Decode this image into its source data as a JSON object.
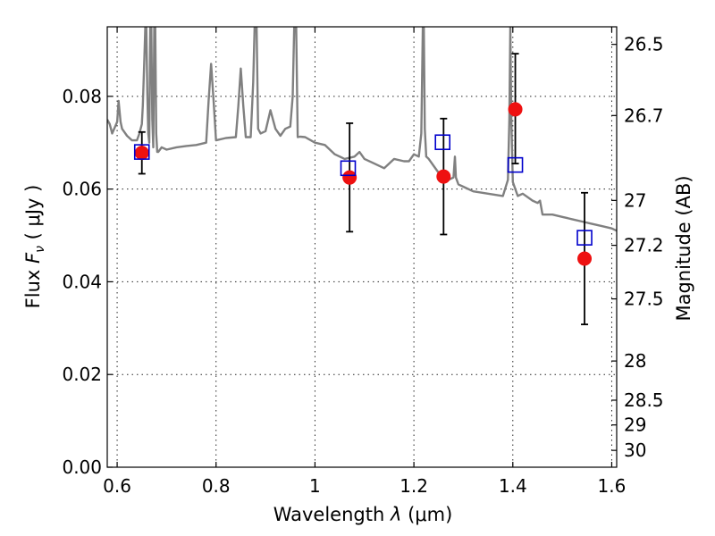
{
  "chart_data": {
    "type": "scatter",
    "xlabel_text": "Wavelength",
    "xlabel_symbol": "λ",
    "xlabel_unit": "(μm)",
    "ylabel_text": "Flux",
    "ylabel_symbol_F": "F",
    "ylabel_symbol_nu": "ν",
    "ylabel_unit": "( μJy )",
    "ylabel_right": "Magnitude (AB)",
    "xlim": [
      0.58,
      1.61
    ],
    "ylim": [
      0.0,
      0.095
    ],
    "grid": true,
    "x_ticks": [
      0.6,
      0.8,
      1.0,
      1.2,
      1.4,
      1.6
    ],
    "x_tick_labels": [
      "0.6",
      "0.8",
      "1",
      "1.2",
      "1.4",
      "1.6"
    ],
    "y_ticks": [
      0.0,
      0.02,
      0.04,
      0.06,
      0.08
    ],
    "y_tick_labels": [
      "0.00",
      "0.02",
      "0.04",
      "0.06",
      "0.08"
    ],
    "right_ticks": [
      {
        "mag": 26.5,
        "label": "26.5"
      },
      {
        "mag": 26.7,
        "label": "26.7"
      },
      {
        "mag": 27.0,
        "label": "27"
      },
      {
        "mag": 27.2,
        "label": "27.2"
      },
      {
        "mag": 27.5,
        "label": "27.5"
      },
      {
        "mag": 28.0,
        "label": "28"
      },
      {
        "mag": 28.5,
        "label": "28.5"
      },
      {
        "mag": 29.0,
        "label": "29"
      },
      {
        "mag": 30.0,
        "label": "30"
      }
    ],
    "observed": {
      "color": "#ee1111",
      "x": [
        0.65,
        1.07,
        1.26,
        1.405,
        1.545
      ],
      "y": [
        0.0678,
        0.0625,
        0.0627,
        0.0772,
        0.045
      ],
      "y_err_low": [
        0.0633,
        0.0508,
        0.0502,
        0.0655,
        0.0308
      ],
      "y_err_high": [
        0.0723,
        0.0742,
        0.0752,
        0.0892,
        0.0592
      ]
    },
    "model_photometry": {
      "color": "#0000cc",
      "x": [
        0.65,
        1.067,
        1.258,
        1.405,
        1.545
      ],
      "y": [
        0.068,
        0.0645,
        0.0701,
        0.0652,
        0.0495
      ]
    },
    "template_spectrum": {
      "color": "#808080",
      "x": [
        0.58,
        0.585,
        0.59,
        0.6,
        0.603,
        0.607,
        0.61,
        0.62,
        0.63,
        0.64,
        0.645,
        0.65,
        0.652,
        0.655,
        0.657,
        0.659,
        0.661,
        0.663,
        0.665,
        0.667,
        0.669,
        0.671,
        0.673,
        0.675,
        0.677,
        0.679,
        0.681,
        0.683,
        0.69,
        0.7,
        0.72,
        0.74,
        0.76,
        0.78,
        0.785,
        0.79,
        0.795,
        0.8,
        0.82,
        0.84,
        0.845,
        0.85,
        0.855,
        0.86,
        0.87,
        0.875,
        0.878,
        0.88,
        0.882,
        0.885,
        0.89,
        0.9,
        0.91,
        0.92,
        0.93,
        0.94,
        0.95,
        0.955,
        0.958,
        0.96,
        0.962,
        0.965,
        0.97,
        0.98,
        1.0,
        1.02,
        1.04,
        1.06,
        1.08,
        1.09,
        1.1,
        1.12,
        1.14,
        1.16,
        1.18,
        1.19,
        1.2,
        1.21,
        1.215,
        1.218,
        1.22,
        1.222,
        1.225,
        1.23,
        1.25,
        1.27,
        1.28,
        1.283,
        1.285,
        1.29,
        1.3,
        1.32,
        1.35,
        1.38,
        1.39,
        1.393,
        1.395,
        1.397,
        1.4,
        1.41,
        1.42,
        1.44,
        1.45,
        1.455,
        1.46,
        1.48,
        1.5,
        1.52,
        1.54,
        1.56,
        1.58,
        1.6,
        1.61
      ],
      "y": [
        0.075,
        0.074,
        0.072,
        0.0745,
        0.079,
        0.0745,
        0.073,
        0.0715,
        0.0705,
        0.0705,
        0.072,
        0.074,
        0.078,
        0.088,
        0.095,
        0.095,
        0.081,
        0.072,
        0.07,
        0.095,
        0.095,
        0.075,
        0.069,
        0.095,
        0.095,
        0.072,
        0.068,
        0.068,
        0.069,
        0.0685,
        0.069,
        0.0693,
        0.0695,
        0.07,
        0.079,
        0.087,
        0.079,
        0.0705,
        0.071,
        0.0712,
        0.078,
        0.086,
        0.078,
        0.0712,
        0.0712,
        0.083,
        0.095,
        0.095,
        0.095,
        0.073,
        0.072,
        0.0725,
        0.077,
        0.073,
        0.0715,
        0.073,
        0.0735,
        0.08,
        0.095,
        0.095,
        0.095,
        0.0712,
        0.0713,
        0.0712,
        0.07,
        0.0695,
        0.0675,
        0.0665,
        0.067,
        0.068,
        0.0665,
        0.0655,
        0.0645,
        0.0665,
        0.066,
        0.066,
        0.0675,
        0.067,
        0.072,
        0.095,
        0.095,
        0.073,
        0.067,
        0.0665,
        0.0635,
        0.062,
        0.0625,
        0.067,
        0.0625,
        0.061,
        0.0605,
        0.0595,
        0.059,
        0.0585,
        0.062,
        0.075,
        0.095,
        0.075,
        0.0615,
        0.0585,
        0.059,
        0.0575,
        0.057,
        0.0575,
        0.0545,
        0.0545,
        0.054,
        0.0535,
        0.053,
        0.0525,
        0.052,
        0.0515,
        0.051
      ]
    }
  }
}
